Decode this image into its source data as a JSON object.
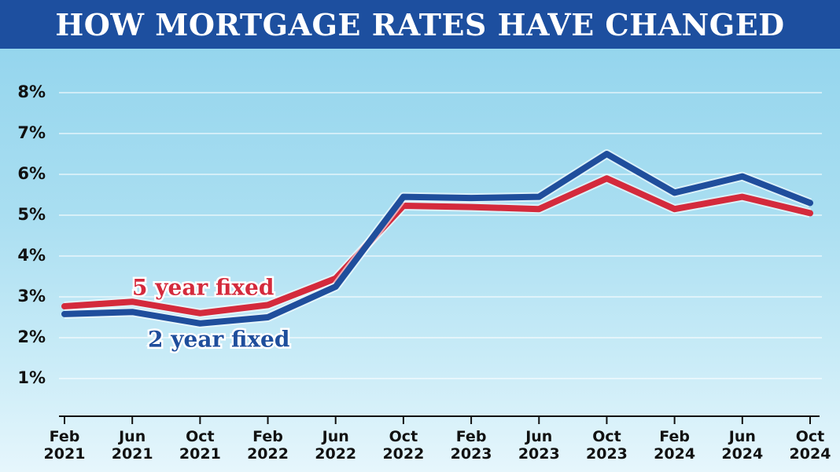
{
  "chart_data": {
    "type": "line",
    "title": "HOW MORTGAGE RATES HAVE CHANGED",
    "categories": [
      "Feb 2021",
      "Jun 2021",
      "Oct 2021",
      "Feb 2022",
      "Jun 2022",
      "Oct 2022",
      "Feb 2023",
      "Jun 2023",
      "Oct 2023",
      "Feb 2024",
      "Jun 2024",
      "Oct 2024"
    ],
    "series": [
      {
        "name": "5 year fixed",
        "color": "#d42a3c",
        "values": [
          2.77,
          2.88,
          2.6,
          2.8,
          3.45,
          5.23,
          5.2,
          5.15,
          5.9,
          5.15,
          5.45,
          5.05
        ]
      },
      {
        "name": "2 year fixed",
        "color": "#1f4e9c",
        "values": [
          2.58,
          2.63,
          2.35,
          2.5,
          3.25,
          5.45,
          5.42,
          5.45,
          6.5,
          5.55,
          5.95,
          5.3
        ]
      }
    ],
    "ylim": [
      0,
      8
    ],
    "yticks": [
      {
        "value": 1,
        "label": "1%"
      },
      {
        "value": 2,
        "label": "2%"
      },
      {
        "value": 3,
        "label": "3%"
      },
      {
        "value": 4,
        "label": "4%"
      },
      {
        "value": 5,
        "label": "5%"
      },
      {
        "value": 6,
        "label": "6%"
      },
      {
        "value": 7,
        "label": "7%"
      },
      {
        "value": 8,
        "label": "8%"
      }
    ],
    "grid": true
  }
}
